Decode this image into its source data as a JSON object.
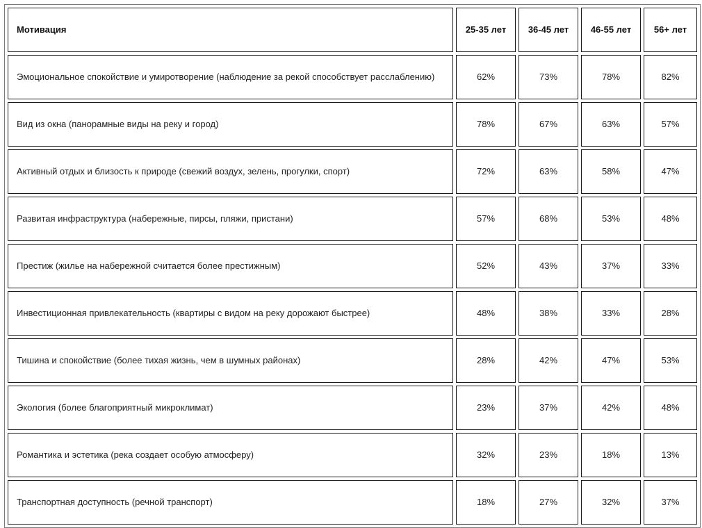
{
  "table": {
    "headers": {
      "motivation": "Мотивация",
      "ages": [
        "25-35 лет",
        "36-45 лет",
        "46-55 лет",
        "56+ лет"
      ]
    },
    "rows": [
      {
        "label": "Эмоциональное спокойствие и умиротворение (наблюдение за рекой способствует расслаблению)",
        "values": [
          "62%",
          "73%",
          "78%",
          "82%"
        ]
      },
      {
        "label": "Вид из окна (панорамные виды на реку и город)",
        "values": [
          "78%",
          "67%",
          "63%",
          "57%"
        ]
      },
      {
        "label": "Активный отдых и близость к природе (свежий воздух, зелень, прогулки, спорт)",
        "values": [
          "72%",
          "63%",
          "58%",
          "47%"
        ]
      },
      {
        "label": "Развитая инфраструктура (набережные, пирсы, пляжи, пристани)",
        "values": [
          "57%",
          "68%",
          "53%",
          "48%"
        ]
      },
      {
        "label": "Престиж (жилье на набережной считается более престижным)",
        "values": [
          "52%",
          "43%",
          "37%",
          "33%"
        ]
      },
      {
        "label": "Инвестиционная привлекательность (квартиры с видом на реку дорожают быстрее)",
        "values": [
          "48%",
          "38%",
          "33%",
          "28%"
        ]
      },
      {
        "label": "Тишина и спокойствие (более тихая жизнь, чем в шумных районах)",
        "values": [
          "28%",
          "42%",
          "47%",
          "53%"
        ]
      },
      {
        "label": "Экология (более благоприятный микроклимат)",
        "values": [
          "23%",
          "37%",
          "42%",
          "48%"
        ]
      },
      {
        "label": "Романтика и эстетика (река создает особую атмосферу)",
        "values": [
          "32%",
          "23%",
          "18%",
          "13%"
        ]
      },
      {
        "label": "Транспортная доступность (речной транспорт)",
        "values": [
          "18%",
          "27%",
          "32%",
          "37%"
        ]
      }
    ]
  }
}
